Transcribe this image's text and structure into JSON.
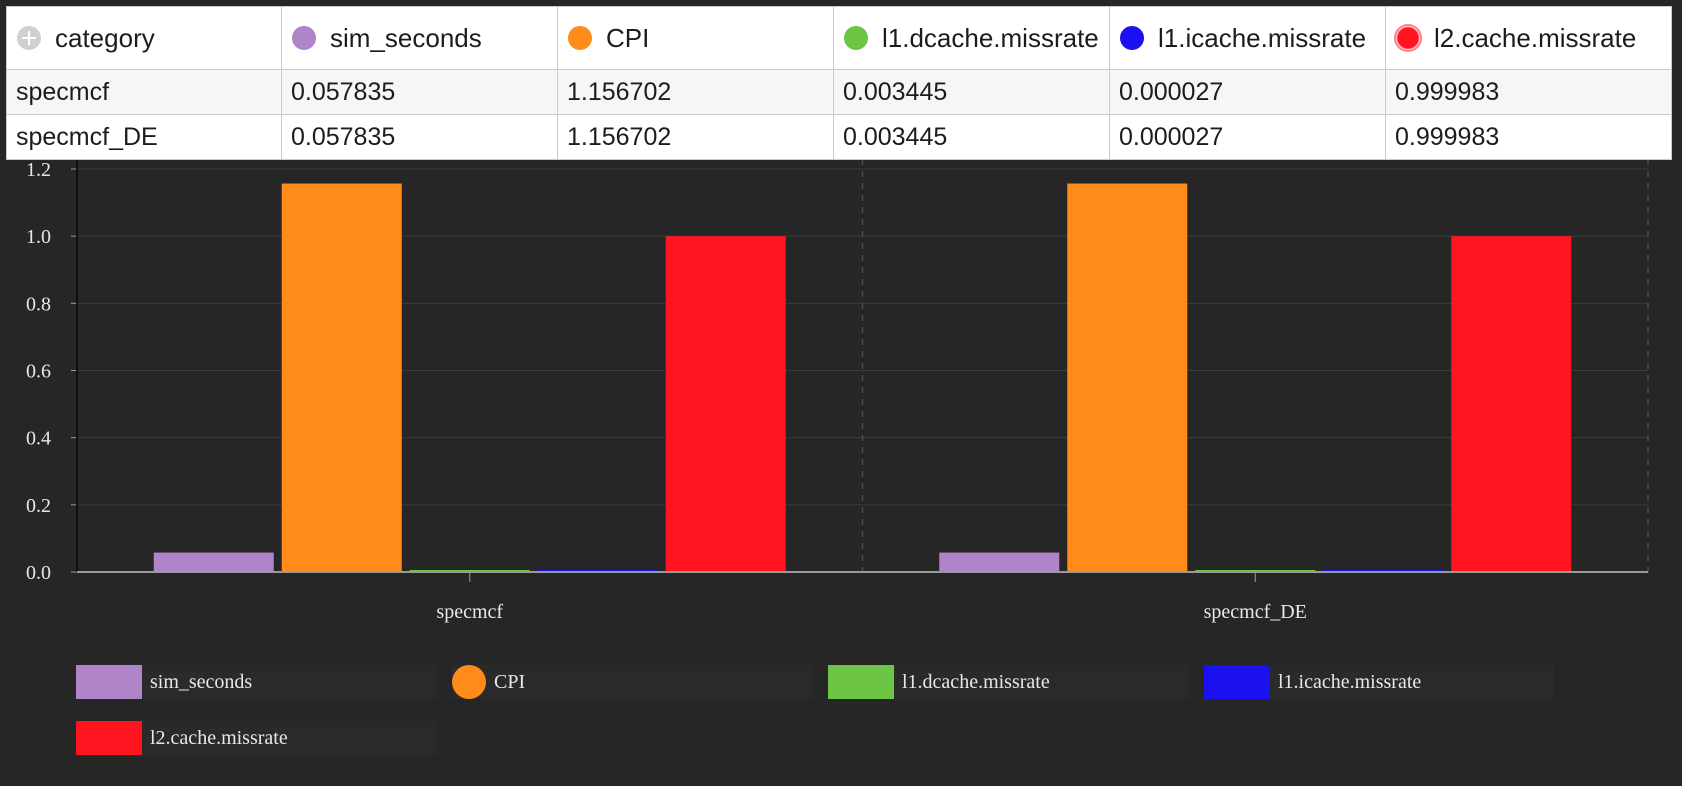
{
  "table": {
    "columns": [
      {
        "label": "category",
        "icon": "add-icon"
      },
      {
        "label": "sim_seconds",
        "color": "#b084c9"
      },
      {
        "label": "CPI",
        "color": "#ff8c1a"
      },
      {
        "label": "l1.dcache.missrate",
        "color": "#6cc644"
      },
      {
        "label": "l1.icache.missrate",
        "color": "#1a10f0"
      },
      {
        "label": "l2.cache.missrate",
        "color": "#ff1420"
      }
    ],
    "rows": [
      [
        "specmcf",
        "0.057835",
        "1.156702",
        "0.003445",
        "0.000027",
        "0.999983"
      ],
      [
        "specmcf_DE",
        "0.057835",
        "1.156702",
        "0.003445",
        "0.000027",
        "0.999983"
      ]
    ]
  },
  "chart_data": {
    "type": "bar",
    "categories": [
      "specmcf",
      "specmcf_DE"
    ],
    "series": [
      {
        "name": "sim_seconds",
        "color": "#b084c9",
        "values": [
          0.057835,
          0.057835
        ]
      },
      {
        "name": "CPI",
        "color": "#ff8c1a",
        "values": [
          1.156702,
          1.156702
        ]
      },
      {
        "name": "l1.dcache.missrate",
        "color": "#6cc644",
        "values": [
          0.003445,
          0.003445
        ]
      },
      {
        "name": "l1.icache.missrate",
        "color": "#1a10f0",
        "values": [
          2.7e-05,
          2.7e-05
        ]
      },
      {
        "name": "l2.cache.missrate",
        "color": "#ff1420",
        "values": [
          0.999983,
          0.999983
        ]
      }
    ],
    "ylim": [
      0,
      1.2
    ],
    "yticks": [
      "0.0",
      "0.2",
      "0.4",
      "0.6",
      "0.8",
      "1.0",
      "1.2"
    ],
    "grid": true,
    "legend_position": "bottom",
    "title": "",
    "xlabel": "",
    "ylabel": ""
  },
  "legend": [
    {
      "label": "sim_seconds",
      "shape": "rect",
      "color": "#b084c9"
    },
    {
      "label": "CPI",
      "shape": "circle",
      "color": "#ff8c1a"
    },
    {
      "label": "l1.dcache.missrate",
      "shape": "rect",
      "color": "#6cc644"
    },
    {
      "label": "l1.icache.missrate",
      "shape": "rect",
      "color": "#1a10f0"
    },
    {
      "label": "l2.cache.missrate",
      "shape": "rect",
      "color": "#ff1420"
    }
  ],
  "colors": {
    "background": "#262626",
    "gridline": "#3c3c3c",
    "axis": "#9a9a9a",
    "tick_text": "#e8e8e8"
  }
}
